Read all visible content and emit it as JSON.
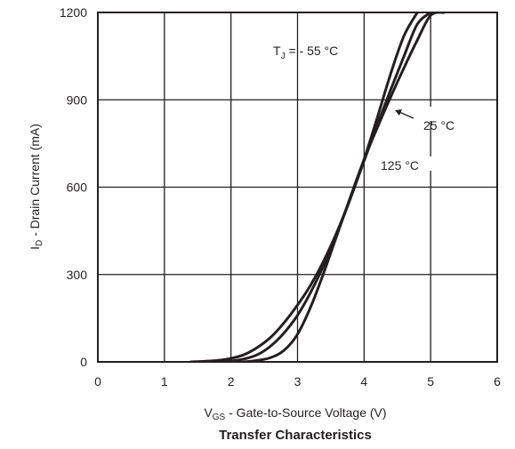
{
  "chart_data": {
    "type": "line",
    "title": "Transfer Characteristics",
    "xlabel": {
      "main": "V",
      "sub": "GS",
      "rest": " - Gate-to-Source Voltage (V)"
    },
    "ylabel": {
      "main": "I",
      "sub": "D",
      "rest": " - Drain Current (mA)"
    },
    "xlim": [
      0,
      6
    ],
    "ylim": [
      0,
      1200
    ],
    "x_ticks": [
      0,
      1,
      2,
      3,
      4,
      5,
      6
    ],
    "y_ticks": [
      0,
      300,
      600,
      900,
      1200
    ],
    "grid": true,
    "series": [
      {
        "name": "- 55 °C",
        "x": [
          1.4,
          1.6,
          1.8,
          2.0,
          2.2,
          2.4,
          2.6,
          2.8,
          3.0,
          3.2,
          3.4,
          3.6,
          3.8,
          4.0,
          4.2,
          4.4,
          4.6,
          4.8
        ],
        "y": [
          0,
          2,
          5,
          12,
          25,
          50,
          85,
          135,
          195,
          265,
          350,
          450,
          565,
          695,
          840,
          990,
          1120,
          1200
        ]
      },
      {
        "name": "25 °C",
        "x": [
          1.8,
          2.0,
          2.2,
          2.4,
          2.6,
          2.8,
          3.0,
          3.2,
          3.4,
          3.6,
          3.8,
          4.0,
          4.2,
          4.4,
          4.6,
          4.8,
          5.0
        ],
        "y": [
          0,
          3,
          10,
          25,
          55,
          100,
          160,
          240,
          335,
          445,
          565,
          690,
          815,
          935,
          1050,
          1160,
          1200
        ]
      },
      {
        "name": "125 °C",
        "x": [
          2.2,
          2.4,
          2.6,
          2.8,
          3.0,
          3.2,
          3.4,
          3.6,
          3.8,
          4.0,
          4.2,
          4.4,
          4.6,
          4.8,
          5.0,
          5.2
        ],
        "y": [
          0,
          5,
          15,
          40,
          95,
          190,
          310,
          440,
          570,
          695,
          805,
          910,
          1010,
          1105,
          1190,
          1200
        ]
      }
    ],
    "annotations": [
      {
        "text": "T",
        "sub": "J",
        "rest": " = - 55 °C"
      },
      {
        "text": "25 °C"
      },
      {
        "text": "125 °C"
      }
    ],
    "colors": {
      "line": "#231f20",
      "grid": "#231f20",
      "background": "#ffffff"
    }
  }
}
